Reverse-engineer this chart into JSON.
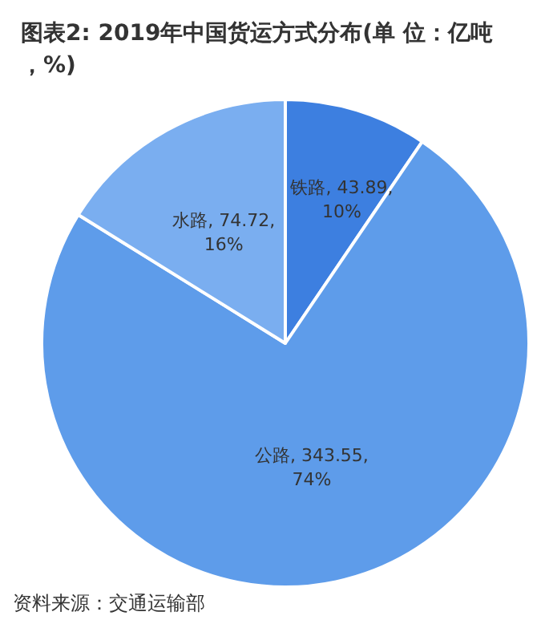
{
  "chart_data": {
    "type": "pie",
    "title": "图表2: 2019年中国货运方式分布(单 位：亿吨，%)",
    "categories": [
      "铁路",
      "公路",
      "水路"
    ],
    "values": [
      43.89,
      343.55,
      74.72
    ],
    "value_labels": [
      "43.89, 10%",
      "343.55, 74%",
      "74.72, 16%"
    ],
    "colors": [
      "#3d7fe0",
      "#5e9cea",
      "#7aaef0"
    ],
    "annotations": [
      "资料来源：交通运输部"
    ]
  }
}
